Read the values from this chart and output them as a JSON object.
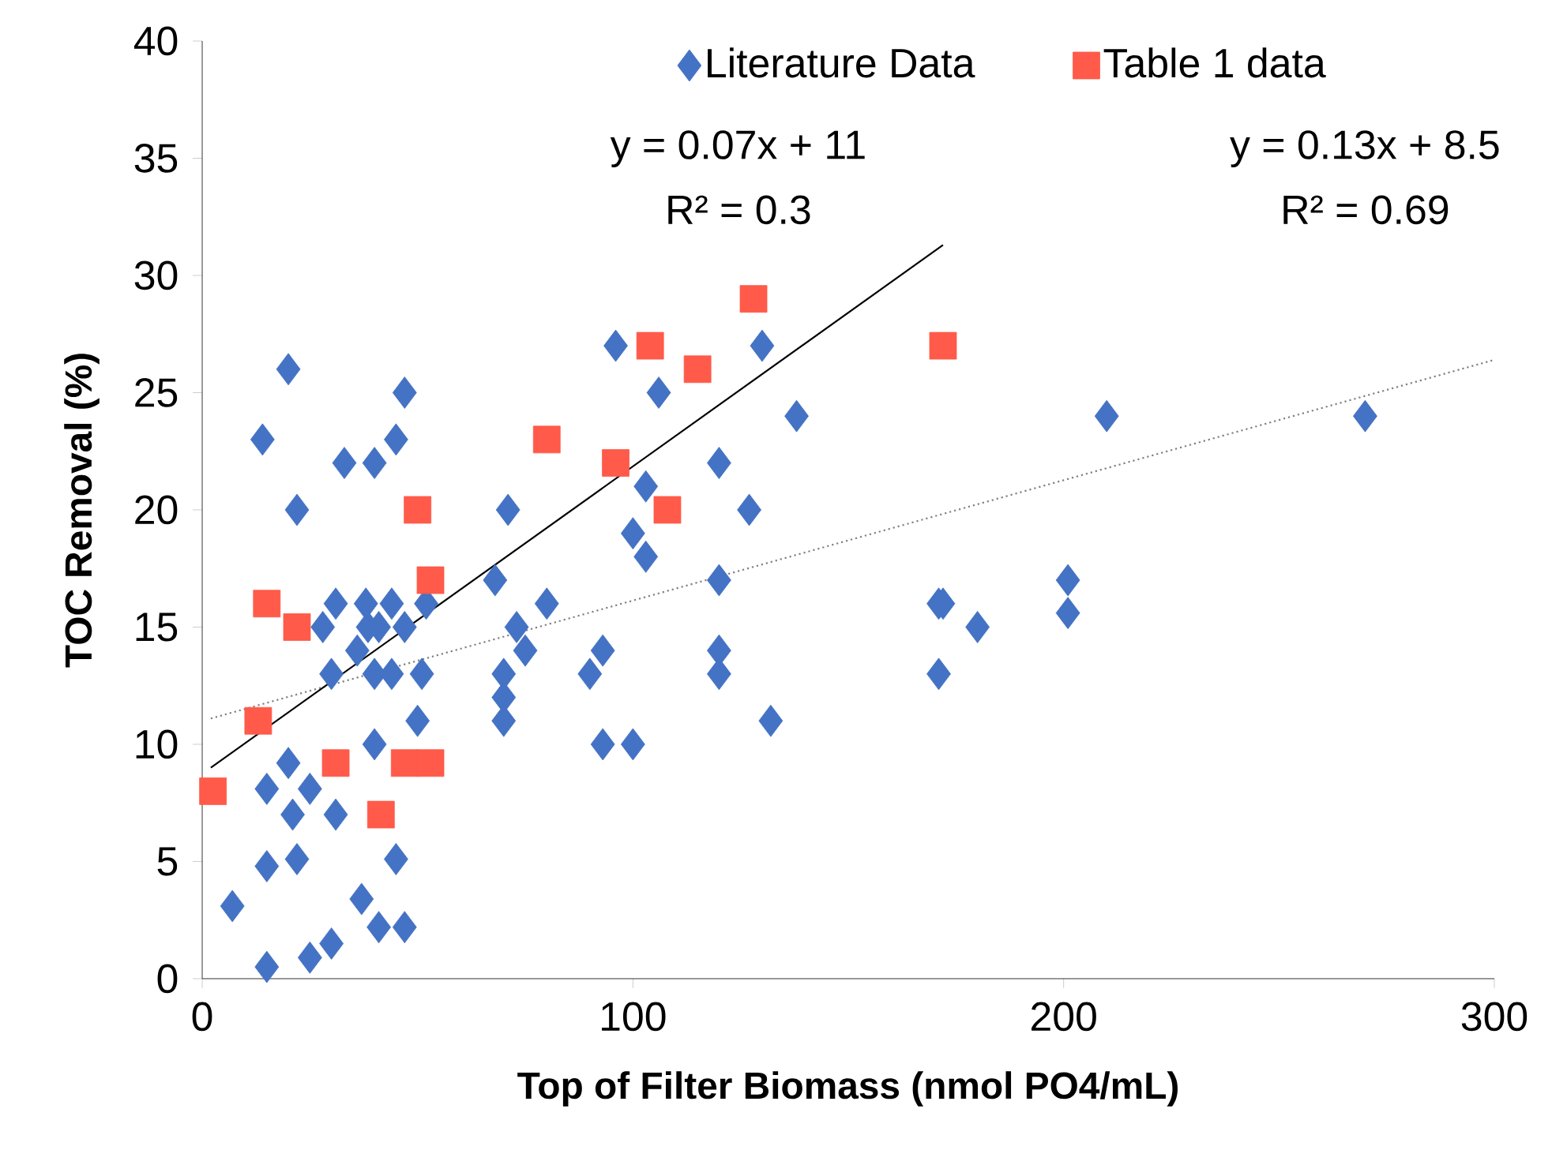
{
  "chart_data": {
    "type": "scatter",
    "xlabel": "Top of Filter Biomass (nmol PO4/mL)",
    "ylabel": "TOC Removal (%)",
    "xlim": [
      0,
      300
    ],
    "ylim": [
      0,
      40
    ],
    "xticks": [
      0,
      100,
      200,
      300
    ],
    "yticks": [
      0,
      5,
      10,
      15,
      20,
      25,
      30,
      35,
      40
    ],
    "legend": "top",
    "grid": false,
    "annotations": [
      "y = 0.07x + 11",
      "R² = 0.3",
      "y = 0.13x + 8.5",
      "R² = 0.69"
    ],
    "series": [
      {
        "name": "Literature Data",
        "color": "#4472c4",
        "marker": "diamond",
        "x": [
          7,
          14,
          15,
          15,
          15,
          20,
          20,
          21,
          22,
          22,
          25,
          25,
          28,
          30,
          30,
          31,
          31,
          33,
          36,
          37,
          38,
          38.5,
          40,
          40,
          40,
          41,
          41,
          44,
          44,
          45,
          45,
          47,
          47,
          47,
          50,
          51,
          52,
          68,
          70,
          70,
          70,
          71,
          73,
          75,
          80,
          90,
          93,
          93,
          96,
          100,
          100,
          103,
          103,
          106,
          120,
          120,
          120,
          120,
          127,
          130,
          132,
          138,
          171,
          171,
          172,
          180,
          201,
          201,
          210,
          270
        ],
        "values": [
          3.1,
          23,
          8.1,
          4.8,
          0.5,
          26,
          9.2,
          7,
          20,
          5.1,
          8.1,
          0.9,
          15,
          1.5,
          13,
          16,
          7,
          22,
          14,
          3.4,
          16,
          15,
          22,
          13,
          10,
          15,
          2.2,
          16,
          13,
          23,
          5.1,
          25,
          15,
          2.2,
          11,
          13,
          16,
          17,
          13,
          12,
          11,
          20,
          15,
          14,
          16,
          13,
          14,
          10,
          27,
          19,
          10,
          21,
          18,
          25,
          22,
          17,
          14,
          13,
          20,
          27,
          11,
          24,
          16,
          13,
          16,
          15,
          17,
          15.6,
          24,
          24
        ]
      },
      {
        "name": "Table 1 data",
        "color": "#ff5a4a",
        "marker": "square",
        "x": [
          2.5,
          13,
          15,
          22,
          31,
          41.5,
          47,
          50,
          53,
          53,
          80,
          96,
          104,
          108,
          115,
          128,
          172
        ],
        "values": [
          8,
          11,
          16,
          15,
          9.2,
          7,
          9.2,
          20,
          17,
          9.2,
          23,
          22,
          27,
          20,
          26,
          29,
          27
        ]
      },
      {
        "type": "line",
        "color": "#808080",
        "line_style": "dotted",
        "marker": "none",
        "x": [
          2,
          300
        ],
        "values": [
          11.1,
          26.4
        ]
      },
      {
        "type": "line",
        "color": "#000000",
        "line_style": "solid",
        "marker": "none",
        "x": [
          2,
          172
        ],
        "values": [
          9.0,
          31.3
        ]
      }
    ]
  }
}
